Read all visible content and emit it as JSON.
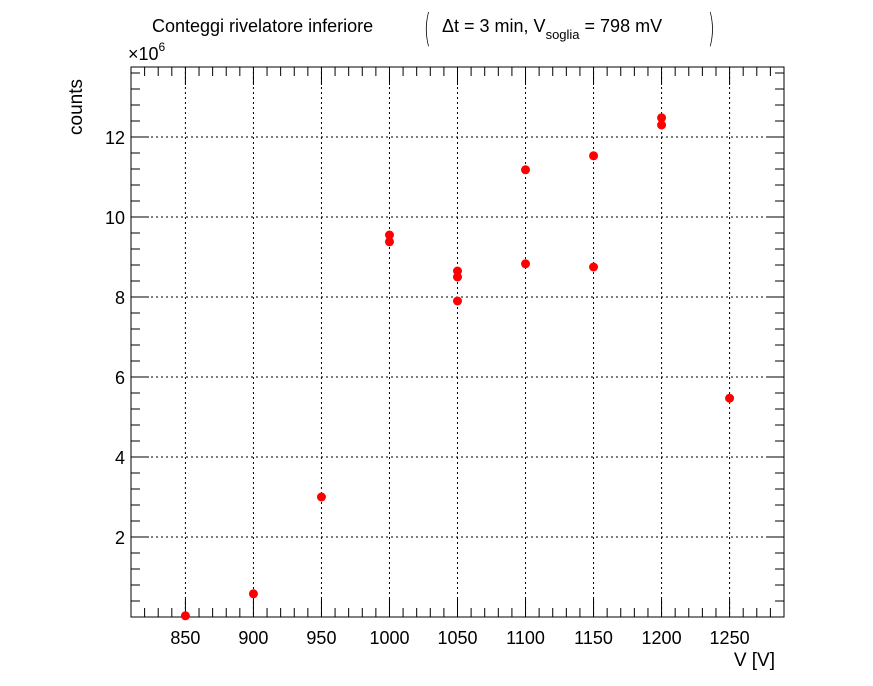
{
  "chart_data": {
    "type": "scatter",
    "title": "Conteggi rivelatore inferiore",
    "subtitle": {
      "prefix": "Δt = 3 min, V",
      "subscript": "soglia",
      "suffix": " = 798 mV"
    },
    "xlabel": "V [V]",
    "ylabel": "counts",
    "y_exponent_label": "×10",
    "y_exponent": "6",
    "xlim": [
      810,
      1290
    ],
    "ylim": [
      0,
      13.75
    ],
    "y_scale_factor": 1000000,
    "x_ticks": [
      850,
      900,
      950,
      1000,
      1050,
      1100,
      1150,
      1200,
      1250
    ],
    "x_tick_labels": [
      "850",
      "900",
      "950",
      "1000",
      "1050",
      "1100",
      "1150",
      "1200",
      "1250"
    ],
    "y_ticks": [
      2,
      4,
      6,
      8,
      10,
      12
    ],
    "y_tick_labels": [
      "2",
      "4",
      "6",
      "8",
      "10",
      "12"
    ],
    "grid": true,
    "marker_color": "#ff0000",
    "series": [
      {
        "points": [
          [
            850,
            0.03
          ],
          [
            900,
            0.58
          ],
          [
            950,
            3.0
          ],
          [
            1000,
            9.55
          ],
          [
            1000,
            9.38
          ],
          [
            1050,
            8.65
          ],
          [
            1050,
            8.5
          ],
          [
            1050,
            7.9
          ],
          [
            1100,
            11.18
          ],
          [
            1100,
            8.83
          ],
          [
            1150,
            11.53
          ],
          [
            1150,
            8.75
          ],
          [
            1200,
            12.48
          ],
          [
            1200,
            12.3
          ],
          [
            1250,
            5.47
          ]
        ]
      }
    ]
  }
}
